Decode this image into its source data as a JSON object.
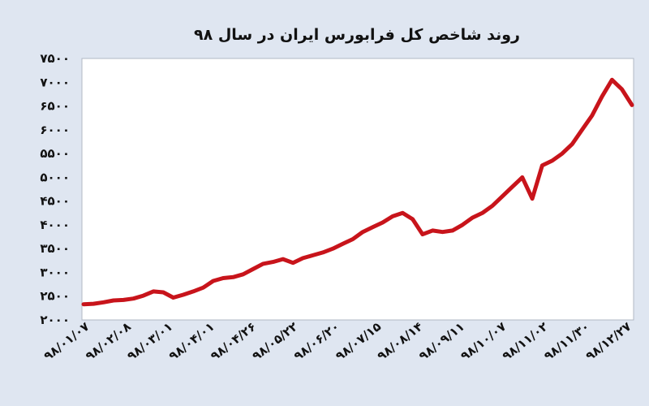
{
  "chart_data": {
    "type": "line",
    "title": "روند شاخص کل فرابورس ایران در سال ۹۸",
    "xlabel": "",
    "ylabel": "",
    "ylim": [
      2000,
      7500
    ],
    "yticks": [
      "۲۰۰۰",
      "۲۵۰۰",
      "۳۰۰۰",
      "۳۵۰۰",
      "۴۰۰۰",
      "۴۵۰۰",
      "۵۰۰۰",
      "۵۵۰۰",
      "۶۰۰۰",
      "۶۵۰۰",
      "۷۰۰۰",
      "۷۵۰۰"
    ],
    "ytick_values": [
      2000,
      2500,
      3000,
      3500,
      4000,
      4500,
      5000,
      5500,
      6000,
      6500,
      7000,
      7500
    ],
    "xticks": [
      "۹۸/۰۱/۰۷",
      "۹۸/۰۲/۰۸",
      "۹۸/۰۳/۰۱",
      "۹۸/۰۴/۰۱",
      "۹۸/۰۴/۲۶",
      "۹۸/۰۵/۲۲",
      "۹۸/۰۶/۲۰",
      "۹۸/۰۷/۱۵",
      "۹۸/۰۸/۱۴",
      "۹۸/۰۹/۱۱",
      "۹۸/۱۰/۰۷",
      "۹۸/۱۱/۰۲",
      "۹۸/۱۱/۳۰",
      "۹۸/۱۲/۲۷"
    ],
    "grid": false,
    "legend": "none",
    "colors": {
      "line": "#c8141b",
      "plot_bg": "#ffffff",
      "page_bg": "#dfe6f1"
    },
    "series": [
      {
        "values": [
          2330,
          2340,
          2370,
          2410,
          2420,
          2450,
          2510,
          2600,
          2580,
          2470,
          2530,
          2600,
          2680,
          2820,
          2880,
          2900,
          2960,
          3070,
          3180,
          3220,
          3280,
          3200,
          3300,
          3360,
          3420,
          3500,
          3600,
          3700,
          3850,
          3950,
          4050,
          4180,
          4250,
          4120,
          3800,
          3880,
          3850,
          3880,
          4000,
          4150,
          4250,
          4400,
          4600,
          4800,
          5000,
          4550,
          5250,
          5350,
          5500,
          5700,
          6000,
          6300,
          6700,
          7050,
          6850,
          6520
        ]
      }
    ]
  }
}
